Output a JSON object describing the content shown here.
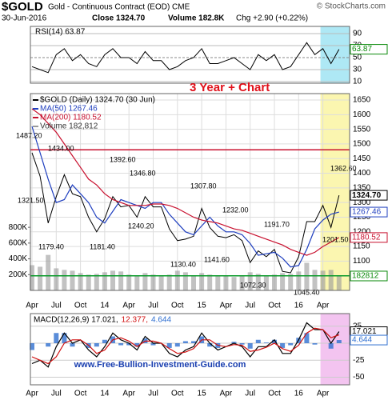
{
  "header": {
    "symbol": "$GOLD",
    "name": "Gold - Continuous Contract (EOD) CME",
    "source": "© StockCharts.com",
    "date": "30-Jun-2016",
    "close": "Close 1324.70",
    "volume": "Volume 182.8K",
    "change": "Chg +2.90 (+0.22%)"
  },
  "footer": "www.Free-Bullion-Investment-Guide.com",
  "chart_data": [
    {
      "type": "line",
      "title": "RSI(14) 63.87",
      "color": "#000000",
      "ylim": [
        0,
        100
      ],
      "yticks": [
        10,
        30,
        50,
        70,
        90
      ],
      "values": [
        35,
        30,
        25,
        55,
        65,
        45,
        55,
        40,
        35,
        55,
        65,
        50,
        50,
        40,
        60,
        45,
        45,
        30,
        35,
        45,
        50,
        65,
        40,
        40,
        45,
        50,
        40,
        30,
        55,
        45,
        55,
        30,
        35,
        55,
        75,
        55,
        65,
        40,
        63.87
      ],
      "tag_color": "#0a8a0a"
    },
    {
      "type": "line",
      "title": "3 Year + Chart",
      "categories": [
        "Apr",
        null,
        null,
        "Jul",
        null,
        null,
        "Oct",
        null,
        null,
        "14",
        null,
        null,
        "Apr",
        null,
        null,
        "Jul",
        null,
        null,
        "Oct",
        null,
        null,
        "15",
        null,
        null,
        "Apr",
        null,
        null,
        "Jul",
        null,
        null,
        "Oct",
        null,
        null,
        "16",
        null,
        null,
        "Apr",
        null,
        null
      ],
      "ylim": [
        1000,
        1700
      ],
      "yticks": [
        1050,
        1100,
        1150,
        1200,
        1250,
        1300,
        1350,
        1400,
        1450,
        1500,
        1550,
        1600,
        1650
      ],
      "y2lim": [
        0,
        2600000
      ],
      "y2ticks": [
        {
          "value": 200000,
          "label": "200K"
        },
        {
          "value": 400000,
          "label": "400K"
        },
        {
          "value": 600000,
          "label": "600K"
        },
        {
          "value": 800000,
          "label": "800K"
        }
      ],
      "grid": true,
      "series": [
        {
          "name": "$GOLD (Daily) 1324.70 (30 Jun)",
          "color": "#000000",
          "values": [
            1470,
            1390,
            1230,
            1320,
            1395,
            1330,
            1320,
            1250,
            1200,
            1245,
            1320,
            1285,
            1290,
            1250,
            1320,
            1285,
            1285,
            1210,
            1170,
            1175,
            1185,
            1280,
            1215,
            1185,
            1180,
            1190,
            1170,
            1095,
            1135,
            1115,
            1140,
            1065,
            1060,
            1115,
            1235,
            1235,
            1290,
            1215,
            1324.7
          ]
        },
        {
          "name": "MA(50) 1267.46",
          "color": "#1f3fbf",
          "values": [
            1560,
            1470,
            1380,
            1300,
            1310,
            1360,
            1330,
            1300,
            1250,
            1230,
            1270,
            1310,
            1300,
            1290,
            1280,
            1300,
            1300,
            1260,
            1230,
            1200,
            1190,
            1220,
            1250,
            1220,
            1200,
            1200,
            1190,
            1160,
            1120,
            1125,
            1130,
            1110,
            1080,
            1085,
            1140,
            1210,
            1240,
            1260,
            1267.46
          ]
        },
        {
          "name": "MA(200) 1180.52",
          "color": "#c8102e",
          "values": [
            1620,
            1600,
            1570,
            1540,
            1500,
            1460,
            1420,
            1380,
            1360,
            1330,
            1310,
            1300,
            1290,
            1290,
            1290,
            1295,
            1295,
            1290,
            1280,
            1265,
            1250,
            1240,
            1235,
            1230,
            1220,
            1210,
            1205,
            1195,
            1185,
            1175,
            1165,
            1155,
            1140,
            1130,
            1120,
            1130,
            1150,
            1165,
            1180.52
          ]
        },
        {
          "name": "Volume 182,812",
          "color": "#999999",
          "axis": "y2",
          "values": [
            320000,
            300000,
            450000,
            280000,
            260000,
            250000,
            220000,
            200000,
            210000,
            230000,
            250000,
            240000,
            200000,
            190000,
            220000,
            200000,
            180000,
            200000,
            250000,
            230000,
            190000,
            220000,
            200000,
            190000,
            180000,
            170000,
            190000,
            230000,
            210000,
            190000,
            200000,
            220000,
            210000,
            240000,
            350000,
            260000,
            250000,
            260000,
            182812
          ]
        }
      ],
      "point_labels": [
        {
          "value": 1487.2,
          "label": "1487.20"
        },
        {
          "value": 1434,
          "label": "1434.00"
        },
        {
          "value": 1392.6,
          "label": "1392.60"
        },
        {
          "value": 1346.8,
          "label": "1346.80"
        },
        {
          "value": 1321.5,
          "label": "1321.50"
        },
        {
          "value": 1307.8,
          "label": "1307.80"
        },
        {
          "value": 1232,
          "label": "1232.00"
        },
        {
          "value": 1240.2,
          "label": "1240.20"
        },
        {
          "value": 1191.7,
          "label": "1191.70"
        },
        {
          "value": 1179.4,
          "label": "1179.40"
        },
        {
          "value": 1181.4,
          "label": "1181.40"
        },
        {
          "value": 1130.4,
          "label": "1130.40"
        },
        {
          "value": 1141.6,
          "label": "1141.60"
        },
        {
          "value": 1072.3,
          "label": "1072.30"
        },
        {
          "value": 1045.4,
          "label": "1045.40"
        },
        {
          "value": 1362.6,
          "label": "1362.60"
        },
        {
          "value": 1201.5,
          "label": "1201.50"
        }
      ],
      "hlines": [
        {
          "value": 1480,
          "color": "#c8102e"
        },
        {
          "value": 1050,
          "color": "#0a9a2a"
        }
      ],
      "last_tag": {
        "value": 1324.7,
        "label": "1324.70"
      }
    },
    {
      "type": "line",
      "title_parts": [
        "MACD(12,26,9) 17.021,",
        "12.377,",
        "4.644"
      ],
      "categories": [
        "Apr",
        null,
        null,
        "Jul",
        null,
        null,
        "Oct",
        null,
        null,
        "14",
        null,
        null,
        "Apr",
        null,
        null,
        "Jul",
        null,
        null,
        "Oct",
        null,
        null,
        "15",
        null,
        null,
        "Apr",
        null,
        null,
        "Jul",
        null,
        null,
        "Oct",
        null,
        null,
        "16",
        null,
        null,
        "Apr",
        null,
        null
      ],
      "ylim": [
        -60,
        40
      ],
      "yticks": [
        -50,
        -25,
        0,
        25
      ],
      "series": [
        {
          "color": "#000000",
          "values": [
            -30,
            -25,
            -35,
            -5,
            15,
            0,
            5,
            -10,
            -20,
            -5,
            15,
            5,
            0,
            -10,
            10,
            0,
            0,
            -15,
            -20,
            -10,
            -5,
            15,
            0,
            -10,
            -5,
            0,
            -5,
            -20,
            -5,
            -5,
            5,
            -15,
            -15,
            5,
            30,
            20,
            20,
            0,
            17.021
          ]
        },
        {
          "color": "#d01010",
          "values": [
            -20,
            -25,
            -30,
            -20,
            0,
            5,
            5,
            -3,
            -15,
            -10,
            5,
            8,
            3,
            -5,
            3,
            3,
            0,
            -8,
            -15,
            -13,
            -8,
            5,
            5,
            -3,
            -5,
            -2,
            -3,
            -12,
            -10,
            -6,
            0,
            -8,
            -12,
            -3,
            15,
            22,
            20,
            8,
            12.377
          ]
        },
        {
          "color": "#2f6fd0",
          "values": [
            -10,
            0,
            -5,
            15,
            15,
            -5,
            0,
            -7,
            -5,
            5,
            10,
            -3,
            -3,
            -5,
            7,
            -3,
            0,
            -7,
            -5,
            3,
            3,
            10,
            -5,
            -7,
            0,
            2,
            -2,
            -8,
            5,
            1,
            5,
            -7,
            -3,
            8,
            15,
            -2,
            0,
            -8,
            4.644
          ]
        }
      ]
    }
  ]
}
